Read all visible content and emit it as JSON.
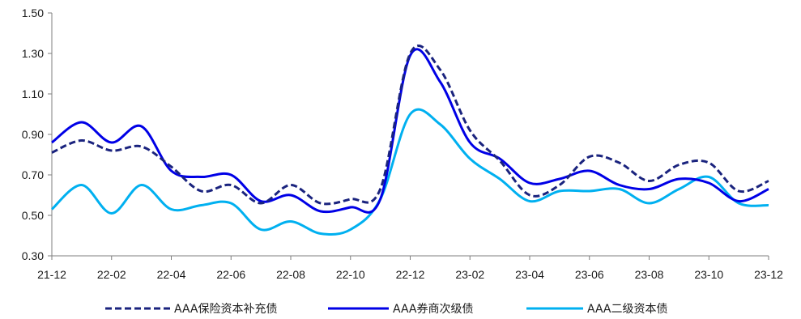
{
  "chart_data": {
    "type": "line",
    "title": "",
    "xlabel": "",
    "ylabel": "",
    "ylim": [
      0.3,
      1.5
    ],
    "yticks": [
      "0.30",
      "0.50",
      "0.70",
      "0.90",
      "1.10",
      "1.30",
      "1.50"
    ],
    "xticks": [
      "21-12",
      "22-02",
      "22-04",
      "22-06",
      "22-08",
      "22-10",
      "22-12",
      "23-02",
      "23-04",
      "23-06",
      "23-08",
      "23-10",
      "23-12"
    ],
    "legend_position": "bottom",
    "x": [
      "21-12",
      "22-01",
      "22-02",
      "22-03",
      "22-04",
      "22-05",
      "22-06",
      "22-07",
      "22-08",
      "22-09",
      "22-10",
      "22-11",
      "22-12",
      "23-01",
      "23-02",
      "23-03",
      "23-04",
      "23-05",
      "23-06",
      "23-07",
      "23-08",
      "23-09",
      "23-10",
      "23-11",
      "23-12"
    ],
    "series": [
      {
        "name": "AAA保险资本补充债",
        "color": "#1a237e",
        "dash": true,
        "values": [
          0.81,
          0.87,
          0.82,
          0.84,
          0.74,
          0.62,
          0.65,
          0.56,
          0.65,
          0.56,
          0.58,
          0.63,
          1.3,
          1.22,
          0.92,
          0.77,
          0.6,
          0.65,
          0.79,
          0.76,
          0.67,
          0.75,
          0.76,
          0.62,
          0.67
        ]
      },
      {
        "name": "AAA券商次级债",
        "color": "#0000e6",
        "dash": false,
        "values": [
          0.86,
          0.96,
          0.86,
          0.94,
          0.72,
          0.69,
          0.7,
          0.57,
          0.6,
          0.52,
          0.54,
          0.58,
          1.29,
          1.16,
          0.86,
          0.78,
          0.66,
          0.68,
          0.72,
          0.65,
          0.63,
          0.68,
          0.66,
          0.57,
          0.63
        ]
      },
      {
        "name": "AAA二级资本债",
        "color": "#00b0f0",
        "dash": false,
        "values": [
          0.53,
          0.65,
          0.51,
          0.65,
          0.53,
          0.55,
          0.56,
          0.43,
          0.47,
          0.41,
          0.43,
          0.58,
          1.0,
          0.95,
          0.78,
          0.68,
          0.57,
          0.62,
          0.62,
          0.63,
          0.56,
          0.63,
          0.69,
          0.56,
          0.55
        ]
      }
    ]
  }
}
